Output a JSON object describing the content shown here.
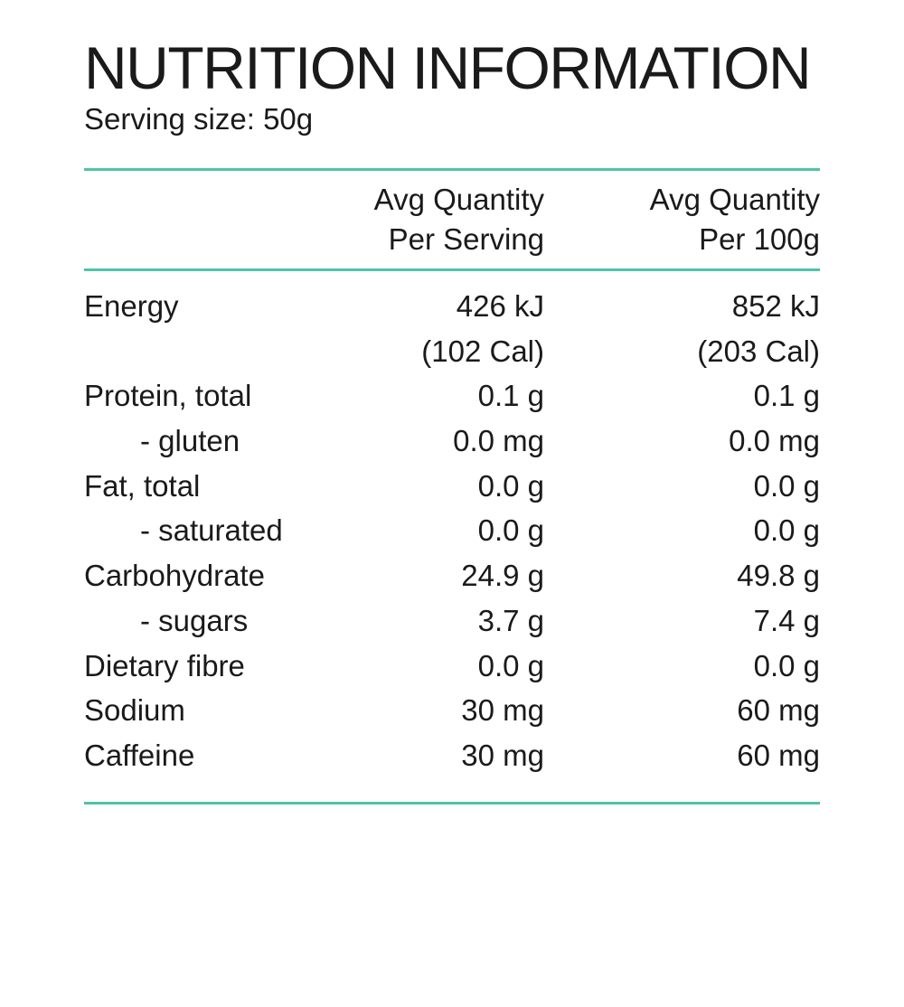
{
  "label": {
    "title": "NUTRITION INFORMATION",
    "serving_size": "Serving size: 50g",
    "columns": {
      "per_serving_line1": "Avg Quantity",
      "per_serving_line2": "Per Serving",
      "per_100g_line1": "Avg Quantity",
      "per_100g_line2": "Per 100g"
    },
    "rows": [
      {
        "name": "Energy",
        "per_serving": "426 kJ",
        "per_100g": "852 kJ"
      },
      {
        "name": "",
        "per_serving": "(102 Cal)",
        "per_100g": "(203 Cal)"
      },
      {
        "name": "Protein, total",
        "per_serving": "0.1 g",
        "per_100g": "0.1 g"
      },
      {
        "name": "- gluten",
        "per_serving": "0.0 mg",
        "per_100g": "0.0 mg"
      },
      {
        "name": "Fat, total",
        "per_serving": "0.0 g",
        "per_100g": "0.0 g"
      },
      {
        "name": "- saturated",
        "per_serving": "0.0 g",
        "per_100g": "0.0 g"
      },
      {
        "name": "Carbohydrate",
        "per_serving": "24.9 g",
        "per_100g": "49.8 g"
      },
      {
        "name": "- sugars",
        "per_serving": "3.7 g",
        "per_100g": "7.4 g"
      },
      {
        "name": "Dietary fibre",
        "per_serving": "0.0 g",
        "per_100g": "0.0 g"
      },
      {
        "name": "Sodium",
        "per_serving": "30 mg",
        "per_100g": "60 mg"
      },
      {
        "name": "Caffeine",
        "per_serving": "30 mg",
        "per_100g": "60 mg"
      }
    ]
  },
  "colors": {
    "rule": "#4fc3a8",
    "text": "#1a1a1a"
  }
}
